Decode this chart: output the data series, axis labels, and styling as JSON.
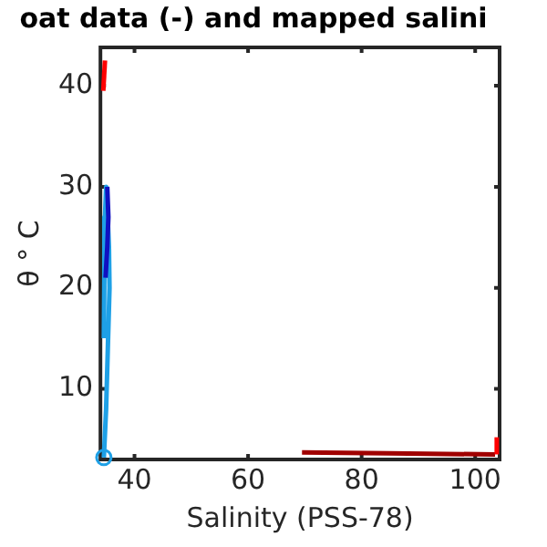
{
  "chart_data": {
    "type": "line",
    "title": "oat data (-) and mapped salini",
    "xlabel": "Salinity (PSS-78)",
    "ylabel": "θ ° C",
    "xlim": [
      34,
      104.3
    ],
    "xticks": [
      40,
      60,
      80,
      100
    ],
    "ylim": [
      3,
      43.8
    ],
    "yticks": [
      10,
      20,
      30,
      40
    ],
    "grid": false,
    "legend": false,
    "marker": "none",
    "series": [
      {
        "color": "#1ea0e6",
        "x": [
          34.6,
          35.0,
          35.3,
          35.6,
          35.5,
          35.2,
          35.0,
          34.8,
          34.7,
          34.6
        ],
        "values": [
          3.2,
          8,
          14,
          20,
          24,
          28,
          30,
          27,
          22,
          15
        ]
      },
      {
        "color": "#1010c0",
        "x": [
          34.9,
          35.2,
          35.4,
          35.2
        ],
        "values": [
          21,
          24,
          27,
          30
        ]
      },
      {
        "color": "#ff0000",
        "x": [
          34.5,
          34.8
        ],
        "values": [
          39.5,
          42.5
        ]
      },
      {
        "color": "#a00000",
        "x": [
          69.5,
          85,
          103.5
        ],
        "values": [
          3.7,
          3.6,
          3.5
        ]
      },
      {
        "color": "#ff0000",
        "x": [
          103.8,
          103.8
        ],
        "values": [
          3.5,
          5.2
        ]
      },
      {
        "type": "scatter",
        "marker": "circle",
        "color": "#1ea0e6",
        "x": [
          34.6
        ],
        "values": [
          3.2
        ]
      }
    ]
  }
}
